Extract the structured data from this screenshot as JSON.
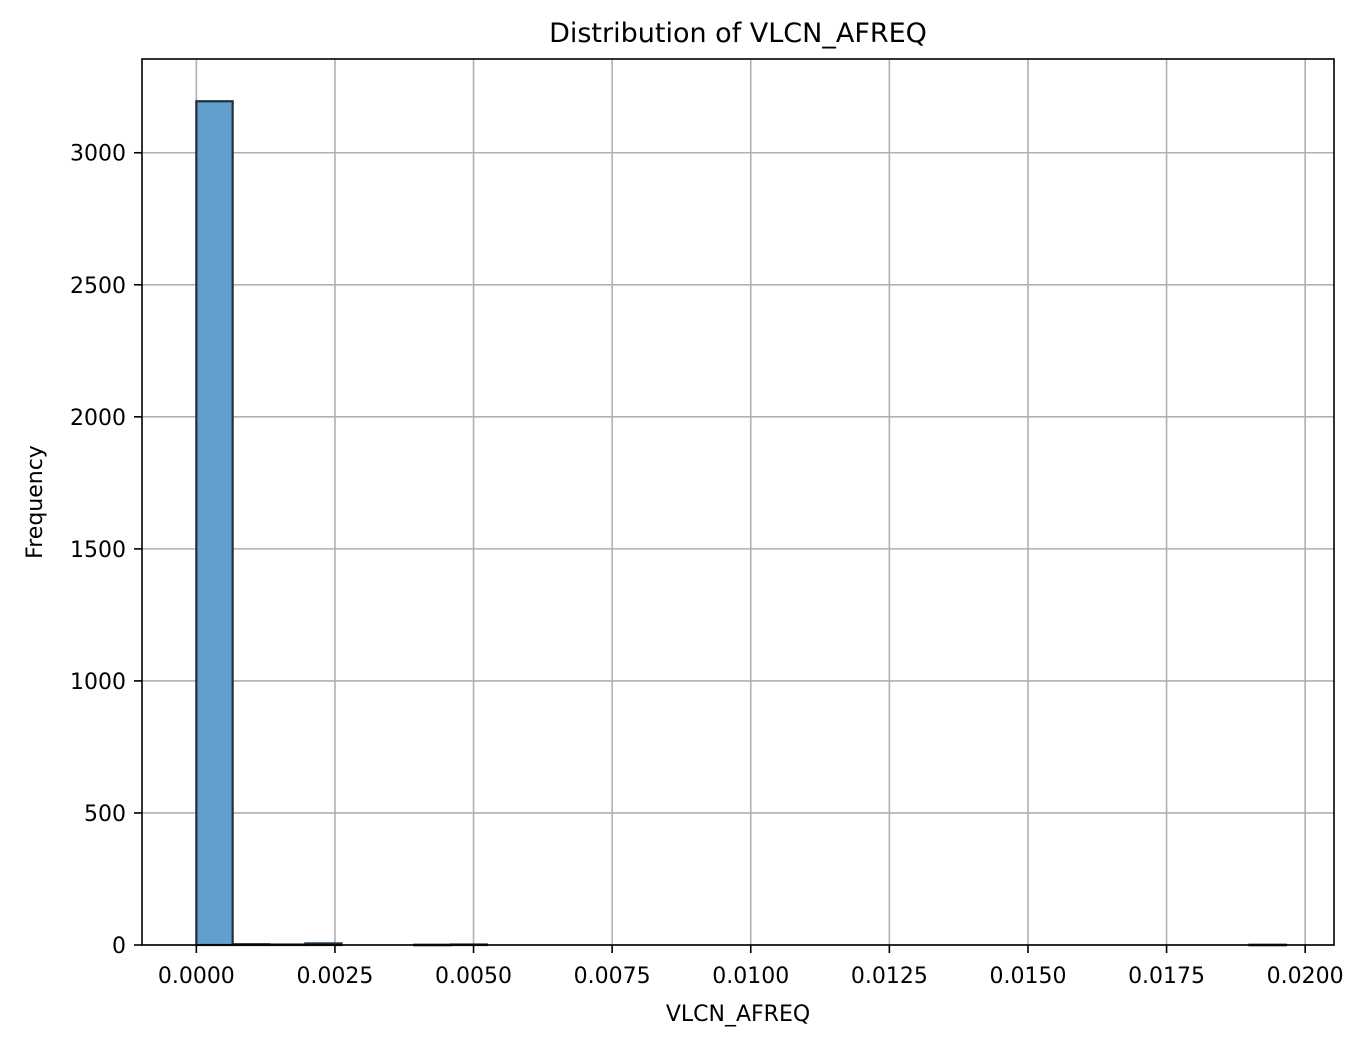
{
  "chart_data": {
    "type": "bar",
    "title": "Distribution of VLCN_AFREQ",
    "xlabel": "VLCN_AFREQ",
    "ylabel": "Frequency",
    "xlim": [
      -0.00098,
      0.02052
    ],
    "ylim": [
      0,
      3355
    ],
    "grid": true,
    "bar_color": "#619fcf",
    "edge_color": "#1f2f3f",
    "grid_color": "#b0b0b0",
    "x_ticks": [
      0.0,
      0.0025,
      0.005,
      0.0075,
      0.01,
      0.0125,
      0.015,
      0.0175,
      0.02
    ],
    "x_tick_labels": [
      "0.0000",
      "0.0025",
      "0.0050",
      "0.0075",
      "0.0100",
      "0.0125",
      "0.0150",
      "0.0175",
      "0.0200"
    ],
    "y_ticks": [
      0,
      500,
      1000,
      1500,
      2000,
      2500,
      3000
    ],
    "y_tick_labels": [
      "0",
      "500",
      "1000",
      "1500",
      "2000",
      "2500",
      "3000"
    ],
    "bins": [
      {
        "x0": 0.0,
        "x1": 0.000655,
        "count": 3195
      },
      {
        "x0": 0.000655,
        "x1": 0.00131,
        "count": 3
      },
      {
        "x0": 0.00131,
        "x1": 0.001965,
        "count": 2
      },
      {
        "x0": 0.001965,
        "x1": 0.00262,
        "count": 6
      },
      {
        "x0": 0.00262,
        "x1": 0.003275,
        "count": 0
      },
      {
        "x0": 0.003275,
        "x1": 0.00393,
        "count": 0
      },
      {
        "x0": 0.00393,
        "x1": 0.004585,
        "count": 1
      },
      {
        "x0": 0.004585,
        "x1": 0.00524,
        "count": 2
      },
      {
        "x0": 0.00524,
        "x1": 0.005895,
        "count": 0
      },
      {
        "x0": 0.005895,
        "x1": 0.00655,
        "count": 0
      },
      {
        "x0": 0.00655,
        "x1": 0.007205,
        "count": 0
      },
      {
        "x0": 0.007205,
        "x1": 0.00786,
        "count": 0
      },
      {
        "x0": 0.00786,
        "x1": 0.008515,
        "count": 0
      },
      {
        "x0": 0.008515,
        "x1": 0.00917,
        "count": 0
      },
      {
        "x0": 0.00917,
        "x1": 0.009825,
        "count": 0
      },
      {
        "x0": 0.009825,
        "x1": 0.01048,
        "count": 0
      },
      {
        "x0": 0.01048,
        "x1": 0.011135,
        "count": 0
      },
      {
        "x0": 0.011135,
        "x1": 0.01179,
        "count": 0
      },
      {
        "x0": 0.01179,
        "x1": 0.012445,
        "count": 0
      },
      {
        "x0": 0.012445,
        "x1": 0.0131,
        "count": 0
      },
      {
        "x0": 0.0131,
        "x1": 0.013755,
        "count": 0
      },
      {
        "x0": 0.013755,
        "x1": 0.01441,
        "count": 0
      },
      {
        "x0": 0.01441,
        "x1": 0.015065,
        "count": 0
      },
      {
        "x0": 0.015065,
        "x1": 0.01572,
        "count": 0
      },
      {
        "x0": 0.01572,
        "x1": 0.016375,
        "count": 0
      },
      {
        "x0": 0.016375,
        "x1": 0.01703,
        "count": 0
      },
      {
        "x0": 0.01703,
        "x1": 0.017685,
        "count": 0
      },
      {
        "x0": 0.017685,
        "x1": 0.01834,
        "count": 0
      },
      {
        "x0": 0.01834,
        "x1": 0.018995,
        "count": 0
      },
      {
        "x0": 0.018995,
        "x1": 0.01965,
        "count": 1
      }
    ]
  }
}
